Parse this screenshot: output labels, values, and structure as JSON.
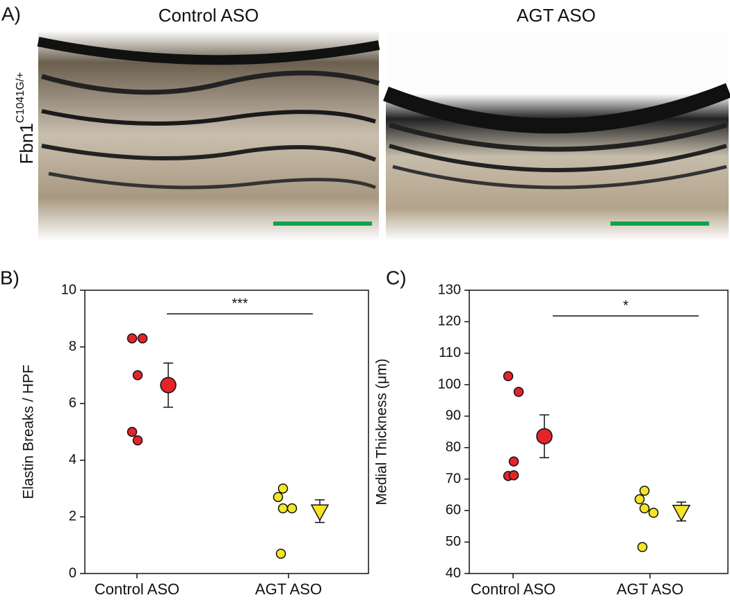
{
  "panel_a": {
    "label": "A)",
    "columns": [
      "Control ASO",
      "AGT ASO"
    ],
    "row_label": "Fbn1",
    "row_label_sup": "C1041G/+"
  },
  "chart_data": [
    {
      "type": "dotplot",
      "panel_label": "B)",
      "y_label": "Elastin Breaks / HPF",
      "categories": [
        "Control ASO",
        "AGT ASO"
      ],
      "points": [
        [
          8.3,
          8.3,
          7.0,
          5.0,
          4.7
        ],
        [
          3.0,
          2.7,
          2.3,
          2.3,
          0.7
        ]
      ],
      "means": [
        6.65,
        2.2
      ],
      "errors": [
        0.78,
        0.4
      ],
      "colors": [
        "#e3242b",
        "#f5e625"
      ],
      "markers": [
        "circle",
        "triangle"
      ],
      "ylim": [
        0,
        10
      ],
      "yticks": [
        0,
        2,
        4,
        6,
        8,
        10
      ],
      "significance": "***"
    },
    {
      "type": "dotplot",
      "panel_label": "C)",
      "y_label": "Medial Thickness (μm)",
      "categories": [
        "Control ASO",
        "AGT ASO"
      ],
      "points": [
        [
          102.7,
          97.7,
          75.6,
          71.0,
          71.2
        ],
        [
          66.3,
          63.6,
          60.7,
          59.3,
          48.4
        ]
      ],
      "means": [
        83.6,
        59.7
      ],
      "errors": [
        6.8,
        3.0
      ],
      "colors": [
        "#e3242b",
        "#f5e625"
      ],
      "markers": [
        "circle",
        "triangle"
      ],
      "ylim": [
        40,
        130
      ],
      "yticks": [
        40,
        50,
        60,
        70,
        80,
        90,
        100,
        110,
        120,
        130
      ],
      "significance": "*"
    }
  ]
}
